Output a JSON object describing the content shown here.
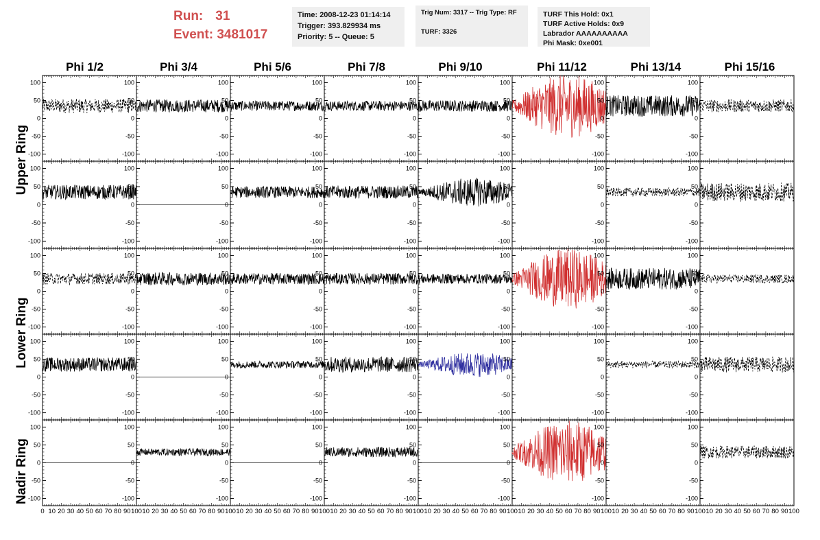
{
  "run_info": {
    "run_label": "Run:",
    "run_number": "31",
    "event_label": "Event:",
    "event_number": "3481017"
  },
  "info_boxes": {
    "box1": [
      "Time: 2008-12-23 01:14:14",
      "Trigger: 393.829934 ms",
      "Priority: 5 -- Queue: 5"
    ],
    "box2": [
      "Trig Num: 3317 -- Trig Type: RF",
      "",
      "TURF: 3326"
    ],
    "box3": [
      "TURF This Hold: 0x1",
      "TURF Active Holds: 0x9",
      "Labrador AAAAAAAAAA",
      "Phi Mask: 0xe001"
    ]
  },
  "columns": [
    "Phi 1/2",
    "Phi 3/4",
    "Phi 5/6",
    "Phi 7/8",
    "Phi 9/10",
    "Phi 11/12",
    "Phi 13/14",
    "Phi 15/16"
  ],
  "ring_labels": [
    "Upper Ring",
    "Lower Ring",
    "Nadir Ring"
  ],
  "chart_data": {
    "type": "line",
    "x_range": [
      0,
      100
    ],
    "y_range": [
      -120,
      120
    ],
    "y_ticks": [
      -100,
      -50,
      0,
      50,
      100
    ],
    "x_ticks": [
      0,
      10,
      20,
      30,
      40,
      50,
      60,
      70,
      80,
      90,
      100
    ],
    "colors": {
      "normal": "#000000",
      "red": "#d03030",
      "blue": "#3030a0"
    },
    "rows": [
      [
        {
          "offset": 35,
          "amp": 20,
          "style": "dashed",
          "color": "normal",
          "x_end": 100
        },
        {
          "offset": 35,
          "amp": 18,
          "style": "solid",
          "color": "normal",
          "x_end": 100
        },
        {
          "offset": 35,
          "amp": 14,
          "style": "solid",
          "color": "normal",
          "x_end": 100
        },
        {
          "offset": 35,
          "amp": 14,
          "style": "solid",
          "color": "normal",
          "x_end": 100
        },
        {
          "offset": 35,
          "amp": 16,
          "style": "solid",
          "color": "normal",
          "x_end": 100
        },
        {
          "offset": 35,
          "amp": 90,
          "style": "solid",
          "color": "red",
          "x_end": 100,
          "burst": true
        },
        {
          "offset": 35,
          "amp": 30,
          "style": "solid",
          "color": "normal",
          "x_end": 100
        },
        {
          "offset": 35,
          "amp": 18,
          "style": "dashed",
          "color": "normal",
          "x_end": 100
        }
      ],
      [
        {
          "offset": 35,
          "amp": 20,
          "style": "solid",
          "color": "normal",
          "x_end": 100
        },
        {
          "offset": 0,
          "amp": 0,
          "style": "solid",
          "color": "normal",
          "x_end": 100
        },
        {
          "offset": 35,
          "amp": 16,
          "style": "solid",
          "color": "normal",
          "x_end": 100
        },
        {
          "offset": 35,
          "amp": 18,
          "style": "solid",
          "color": "normal",
          "x_end": 100
        },
        {
          "offset": 35,
          "amp": 40,
          "style": "solid",
          "color": "normal",
          "x_end": 100,
          "burst": true
        },
        {
          "offset": 0,
          "amp": 0,
          "style": "none",
          "color": "normal",
          "x_end": 100
        },
        {
          "offset": 35,
          "amp": 12,
          "style": "dashed",
          "color": "normal",
          "x_end": 100
        },
        {
          "offset": 35,
          "amp": 26,
          "style": "dashed",
          "color": "normal",
          "x_end": 100
        }
      ],
      [
        {
          "offset": 35,
          "amp": 16,
          "style": "dashed",
          "color": "normal",
          "x_end": 100
        },
        {
          "offset": 35,
          "amp": 18,
          "style": "solid",
          "color": "normal",
          "x_end": 100
        },
        {
          "offset": 35,
          "amp": 16,
          "style": "solid",
          "color": "normal",
          "x_end": 100
        },
        {
          "offset": 35,
          "amp": 16,
          "style": "solid",
          "color": "normal",
          "x_end": 100
        },
        {
          "offset": 35,
          "amp": 14,
          "style": "solid",
          "color": "normal",
          "x_end": 100
        },
        {
          "offset": 35,
          "amp": 85,
          "style": "solid",
          "color": "red",
          "x_end": 100,
          "burst": true
        },
        {
          "offset": 35,
          "amp": 30,
          "style": "solid",
          "color": "normal",
          "x_end": 100
        },
        {
          "offset": 35,
          "amp": 12,
          "style": "dashed",
          "color": "normal",
          "x_end": 100
        }
      ],
      [
        {
          "offset": 35,
          "amp": 20,
          "style": "solid",
          "color": "normal",
          "x_end": 100
        },
        {
          "offset": 0,
          "amp": 0,
          "style": "solid",
          "color": "normal",
          "x_end": 100
        },
        {
          "offset": 35,
          "amp": 10,
          "style": "solid",
          "color": "normal",
          "x_end": 100
        },
        {
          "offset": 35,
          "amp": 22,
          "style": "solid",
          "color": "normal",
          "x_end": 100
        },
        {
          "offset": 35,
          "amp": 35,
          "style": "solid",
          "color": "blue",
          "x_end": 100,
          "burst": true
        },
        {
          "offset": 0,
          "amp": 0,
          "style": "none",
          "color": "normal",
          "x_end": 100
        },
        {
          "offset": 35,
          "amp": 10,
          "style": "dashed",
          "color": "normal",
          "x_end": 100
        },
        {
          "offset": 35,
          "amp": 22,
          "style": "dashed",
          "color": "normal",
          "x_end": 100
        }
      ],
      [
        {
          "offset": 0,
          "amp": 0,
          "style": "solid",
          "color": "normal",
          "x_end": 100
        },
        {
          "offset": 30,
          "amp": 10,
          "style": "solid",
          "color": "normal",
          "x_end": 100
        },
        {
          "offset": 0,
          "amp": 0,
          "style": "solid",
          "color": "normal",
          "x_end": 100
        },
        {
          "offset": 30,
          "amp": 14,
          "style": "solid",
          "color": "normal",
          "x_end": 100
        },
        {
          "offset": 0,
          "amp": 0,
          "style": "solid",
          "color": "normal",
          "x_end": 100
        },
        {
          "offset": 30,
          "amp": 90,
          "style": "solid",
          "color": "red",
          "x_end": 100,
          "burst": true
        },
        {
          "offset": 0,
          "amp": 0,
          "style": "none",
          "color": "normal",
          "x_end": 100
        },
        {
          "offset": 30,
          "amp": 18,
          "style": "dashed",
          "color": "normal",
          "x_end": 100
        }
      ]
    ]
  }
}
